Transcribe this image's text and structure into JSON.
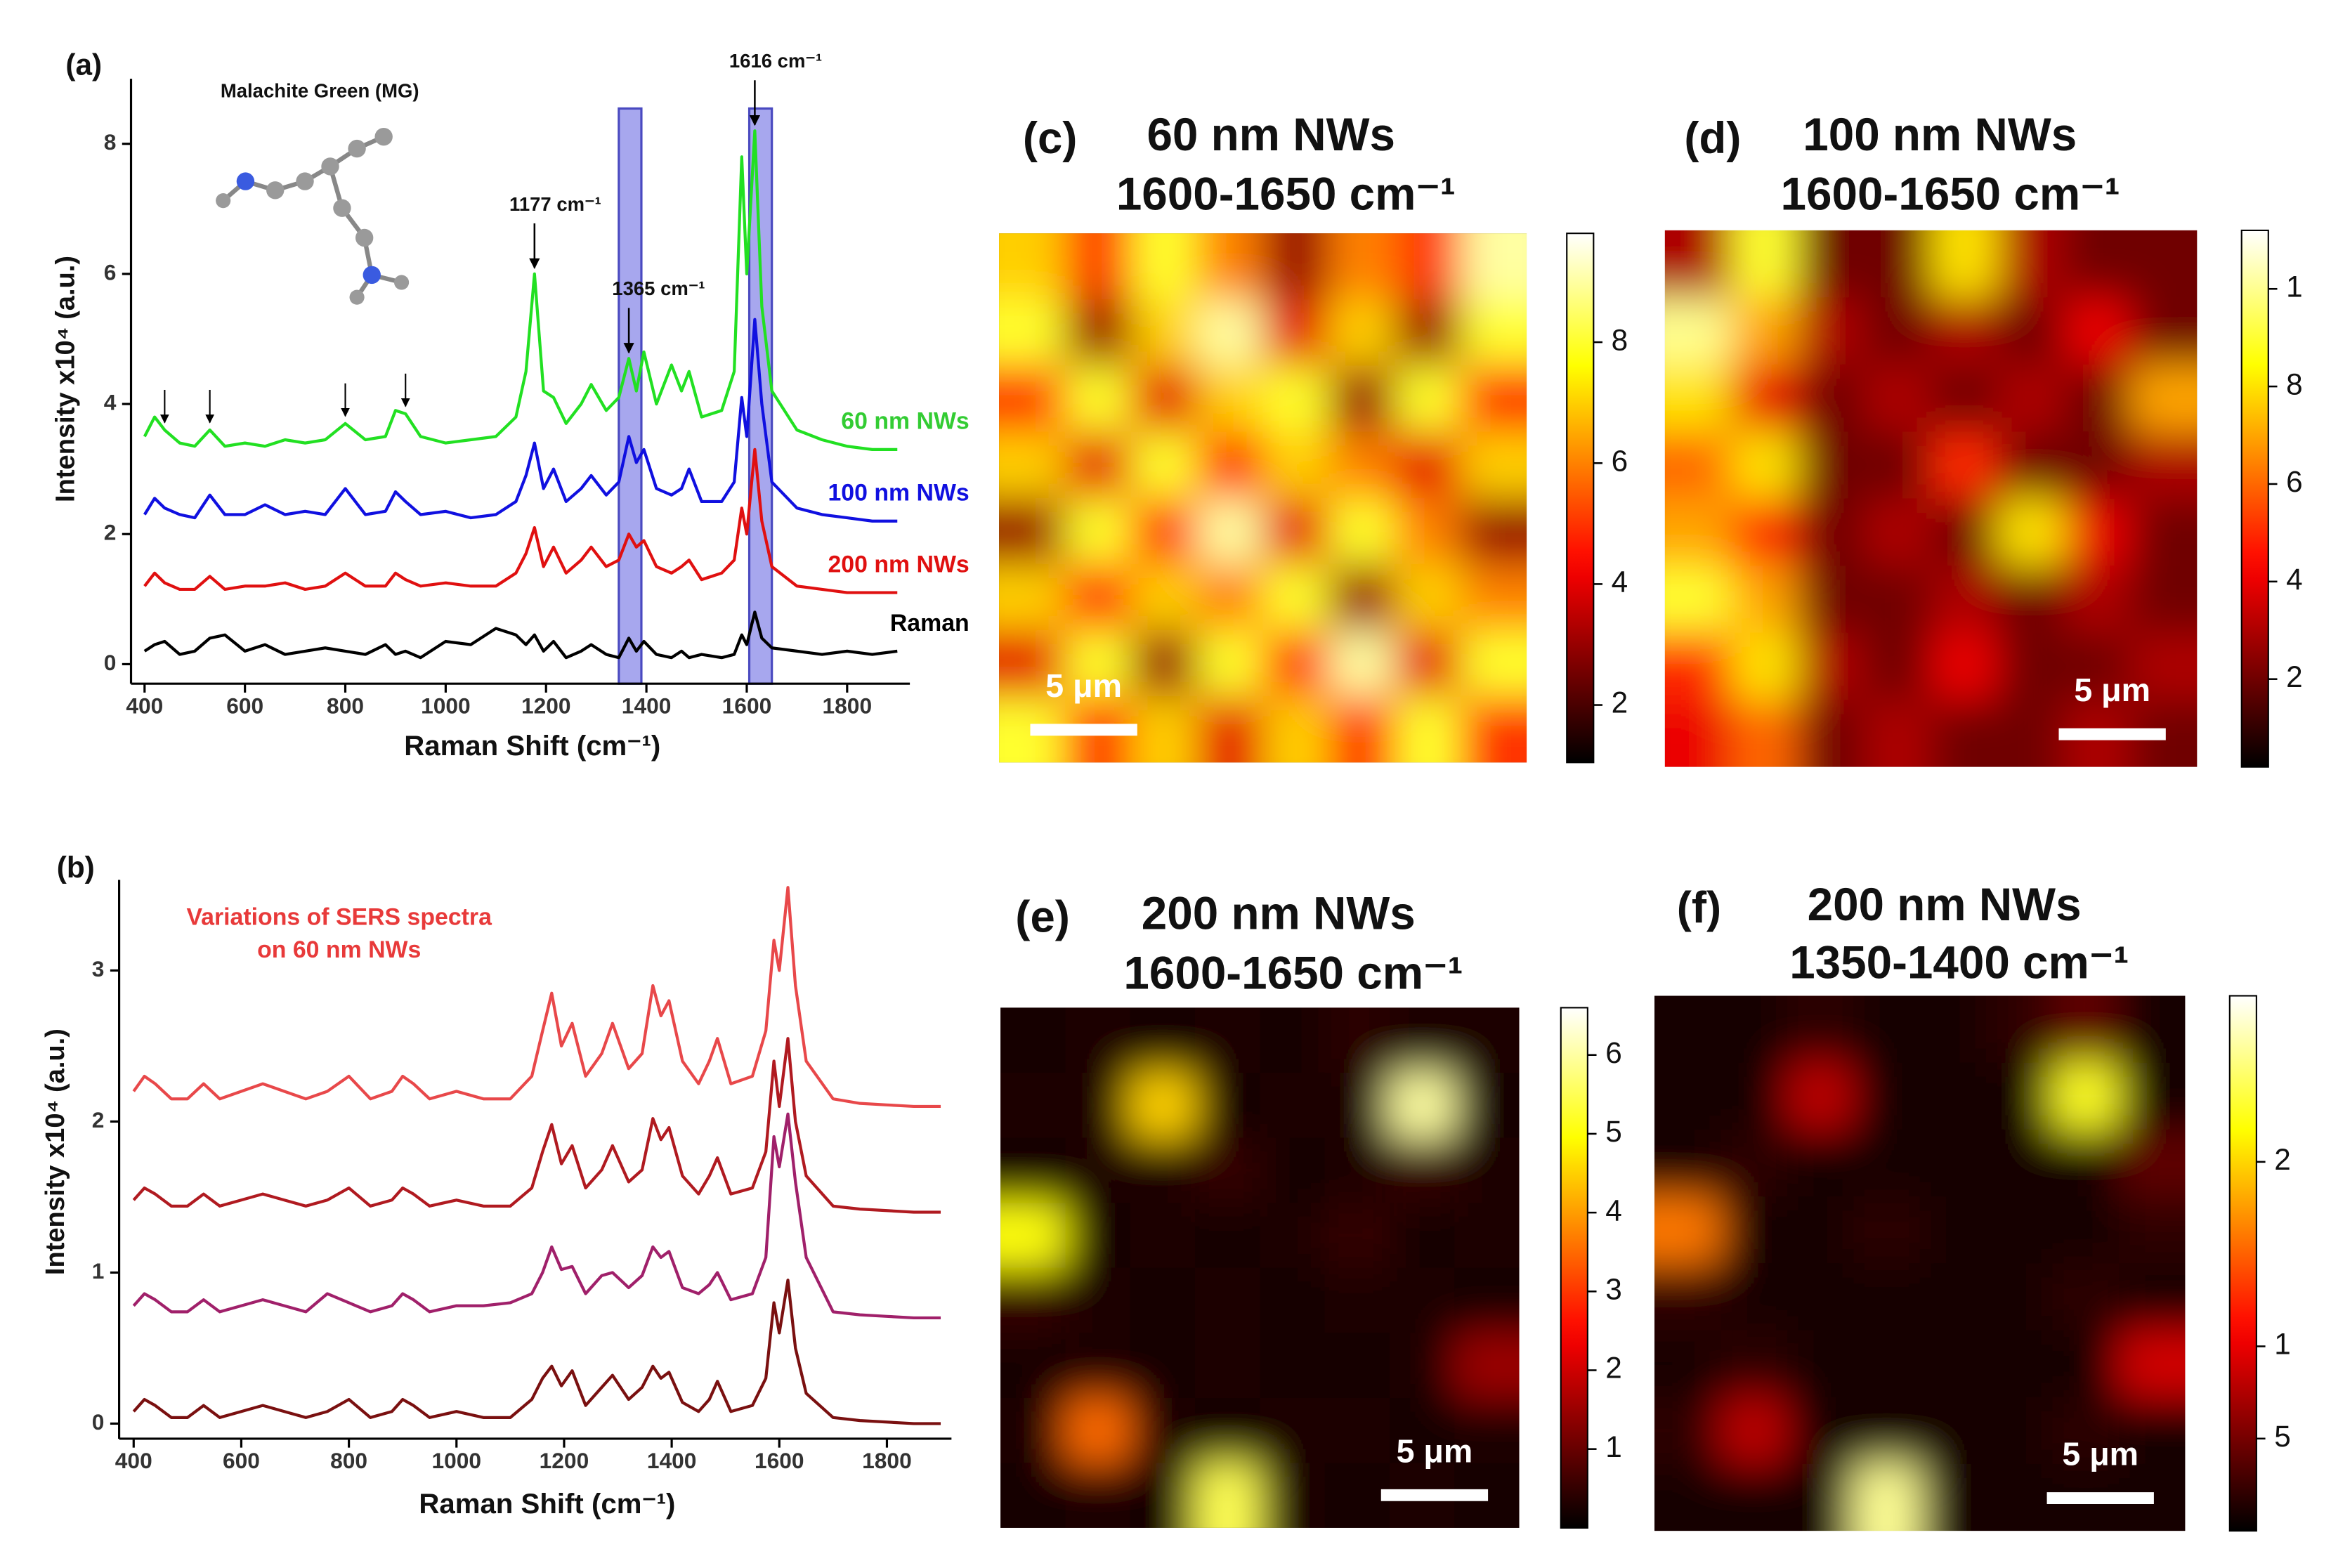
{
  "chart_data": [
    {
      "type": "line",
      "panel": "(a)",
      "inset_title": "Malachite Green (MG)",
      "x_label": "Raman Shift (cm⁻¹)",
      "y_label": "Intensity x10⁴ (a.u.)",
      "x": [
        400,
        420,
        440,
        470,
        500,
        530,
        560,
        600,
        640,
        680,
        720,
        760,
        800,
        840,
        880,
        900,
        920,
        950,
        1000,
        1050,
        1100,
        1140,
        1160,
        1177,
        1195,
        1215,
        1240,
        1270,
        1290,
        1320,
        1345,
        1365,
        1380,
        1395,
        1420,
        1450,
        1470,
        1485,
        1510,
        1550,
        1575,
        1590,
        1600,
        1616,
        1630,
        1650,
        1700,
        1750,
        1800,
        1850,
        1900
      ],
      "series": [
        {
          "name": "60 nm NWs",
          "color": "#22e022",
          "label_color": "#33cc33",
          "values": [
            3.5,
            3.8,
            3.6,
            3.4,
            3.35,
            3.6,
            3.35,
            3.4,
            3.35,
            3.45,
            3.4,
            3.45,
            3.7,
            3.45,
            3.5,
            3.9,
            3.85,
            3.5,
            3.4,
            3.45,
            3.5,
            3.8,
            4.5,
            6.0,
            4.2,
            4.1,
            3.7,
            4.0,
            4.3,
            3.9,
            4.1,
            4.7,
            4.2,
            4.8,
            4.0,
            4.6,
            4.2,
            4.5,
            3.8,
            3.9,
            4.5,
            7.8,
            6.0,
            8.2,
            5.5,
            4.2,
            3.6,
            3.45,
            3.35,
            3.3,
            3.3
          ]
        },
        {
          "name": "100 nm NWs",
          "color": "#1010e0",
          "label_color": "#1010e0",
          "values": [
            2.3,
            2.55,
            2.4,
            2.3,
            2.25,
            2.6,
            2.3,
            2.3,
            2.45,
            2.3,
            2.35,
            2.3,
            2.7,
            2.3,
            2.35,
            2.65,
            2.5,
            2.3,
            2.35,
            2.25,
            2.3,
            2.5,
            2.9,
            3.4,
            2.7,
            3.0,
            2.5,
            2.7,
            2.9,
            2.6,
            2.8,
            3.5,
            3.1,
            3.3,
            2.7,
            2.6,
            2.7,
            3.0,
            2.5,
            2.5,
            2.8,
            4.1,
            3.5,
            5.3,
            4.0,
            2.8,
            2.4,
            2.3,
            2.25,
            2.2,
            2.2
          ]
        },
        {
          "name": "200 nm NWs",
          "color": "#e01010",
          "label_color": "#e01010",
          "values": [
            1.2,
            1.4,
            1.25,
            1.15,
            1.15,
            1.35,
            1.15,
            1.2,
            1.2,
            1.25,
            1.15,
            1.2,
            1.4,
            1.2,
            1.2,
            1.4,
            1.3,
            1.2,
            1.25,
            1.2,
            1.2,
            1.4,
            1.7,
            2.1,
            1.5,
            1.8,
            1.4,
            1.6,
            1.8,
            1.5,
            1.6,
            2.0,
            1.8,
            1.9,
            1.5,
            1.4,
            1.5,
            1.6,
            1.3,
            1.4,
            1.6,
            2.4,
            2.0,
            3.3,
            2.2,
            1.5,
            1.2,
            1.15,
            1.1,
            1.1,
            1.1
          ]
        },
        {
          "name": "Raman",
          "color": "#000000",
          "label_color": "#000000",
          "values": [
            0.2,
            0.3,
            0.35,
            0.15,
            0.2,
            0.4,
            0.45,
            0.2,
            0.3,
            0.15,
            0.2,
            0.25,
            0.2,
            0.15,
            0.3,
            0.15,
            0.2,
            0.1,
            0.35,
            0.3,
            0.55,
            0.45,
            0.3,
            0.45,
            0.2,
            0.35,
            0.1,
            0.2,
            0.3,
            0.15,
            0.1,
            0.4,
            0.2,
            0.35,
            0.15,
            0.1,
            0.2,
            0.1,
            0.15,
            0.1,
            0.15,
            0.45,
            0.3,
            0.8,
            0.4,
            0.25,
            0.2,
            0.15,
            0.2,
            0.15,
            0.2
          ]
        }
      ],
      "xlim": [
        373,
        1925
      ],
      "ylim": [
        -0.3,
        9
      ],
      "xticks": [
        400,
        600,
        800,
        1000,
        1200,
        1400,
        1600,
        1800
      ],
      "yticks": [
        0,
        2,
        4,
        6,
        8
      ],
      "highlight_ranges": [
        [
          1345,
          1390
        ],
        [
          1605,
          1650
        ]
      ],
      "highlight_color": "#8a8ae8",
      "annotations": [
        {
          "text": "1177 cm⁻¹",
          "x": 1177
        },
        {
          "text": "1365 cm⁻¹",
          "x": 1365
        },
        {
          "text": "1616 cm⁻¹",
          "x": 1616
        }
      ],
      "marked_peaks": [
        440,
        530,
        800,
        920
      ]
    },
    {
      "type": "line",
      "panel": "(b)",
      "annotation_lines": [
        "Variations of SERS spectra",
        "on 60 nm NWs"
      ],
      "annotation_color": "#e83a3a",
      "x_label": "Raman Shift (cm⁻¹)",
      "y_label": "Intensity x10⁴ (a.u.)",
      "x": [
        400,
        420,
        440,
        470,
        500,
        530,
        560,
        600,
        640,
        680,
        720,
        760,
        800,
        840,
        880,
        900,
        920,
        950,
        1000,
        1050,
        1100,
        1140,
        1160,
        1177,
        1195,
        1215,
        1240,
        1270,
        1290,
        1320,
        1345,
        1365,
        1380,
        1395,
        1420,
        1450,
        1470,
        1485,
        1510,
        1550,
        1575,
        1590,
        1600,
        1616,
        1630,
        1650,
        1700,
        1750,
        1800,
        1850,
        1900
      ],
      "series": [
        {
          "color": "#e8484a",
          "values": [
            2.2,
            2.3,
            2.25,
            2.15,
            2.15,
            2.25,
            2.15,
            2.2,
            2.25,
            2.2,
            2.15,
            2.2,
            2.3,
            2.15,
            2.2,
            2.3,
            2.25,
            2.15,
            2.2,
            2.15,
            2.15,
            2.3,
            2.6,
            2.85,
            2.5,
            2.65,
            2.3,
            2.45,
            2.65,
            2.35,
            2.45,
            2.9,
            2.7,
            2.8,
            2.4,
            2.25,
            2.4,
            2.55,
            2.25,
            2.3,
            2.6,
            3.2,
            3.0,
            3.55,
            2.9,
            2.4,
            2.15,
            2.12,
            2.11,
            2.1,
            2.1
          ]
        },
        {
          "color": "#b01a20",
          "values": [
            1.48,
            1.56,
            1.52,
            1.44,
            1.44,
            1.52,
            1.44,
            1.48,
            1.52,
            1.48,
            1.44,
            1.48,
            1.56,
            1.44,
            1.48,
            1.56,
            1.52,
            1.44,
            1.48,
            1.44,
            1.44,
            1.56,
            1.8,
            1.98,
            1.72,
            1.84,
            1.56,
            1.68,
            1.84,
            1.6,
            1.68,
            2.02,
            1.88,
            1.96,
            1.64,
            1.52,
            1.64,
            1.76,
            1.52,
            1.56,
            1.8,
            2.4,
            2.1,
            2.55,
            2.0,
            1.64,
            1.44,
            1.42,
            1.41,
            1.4,
            1.4
          ]
        },
        {
          "color": "#a0206a",
          "values": [
            0.78,
            0.86,
            0.82,
            0.74,
            0.74,
            0.82,
            0.74,
            0.78,
            0.82,
            0.78,
            0.74,
            0.86,
            0.8,
            0.74,
            0.78,
            0.86,
            0.82,
            0.74,
            0.78,
            0.78,
            0.8,
            0.86,
            1.0,
            1.17,
            1.02,
            1.04,
            0.86,
            0.98,
            1.0,
            0.9,
            0.98,
            1.17,
            1.1,
            1.14,
            0.9,
            0.86,
            0.92,
            1.0,
            0.82,
            0.86,
            1.1,
            1.9,
            1.7,
            2.05,
            1.6,
            1.1,
            0.74,
            0.72,
            0.71,
            0.7,
            0.7
          ]
        },
        {
          "color": "#7a1010",
          "values": [
            0.08,
            0.16,
            0.12,
            0.04,
            0.04,
            0.12,
            0.04,
            0.08,
            0.12,
            0.08,
            0.04,
            0.08,
            0.16,
            0.04,
            0.08,
            0.16,
            0.12,
            0.04,
            0.08,
            0.04,
            0.04,
            0.16,
            0.3,
            0.38,
            0.25,
            0.35,
            0.12,
            0.24,
            0.32,
            0.16,
            0.24,
            0.38,
            0.3,
            0.34,
            0.14,
            0.08,
            0.16,
            0.28,
            0.08,
            0.12,
            0.3,
            0.8,
            0.6,
            0.95,
            0.5,
            0.2,
            0.04,
            0.02,
            0.01,
            0,
            0
          ]
        }
      ],
      "xlim": [
        373,
        1920
      ],
      "ylim": [
        -0.1,
        3.6
      ],
      "xticks": [
        400,
        600,
        800,
        1000,
        1200,
        1400,
        1600,
        1800
      ],
      "yticks": [
        0,
        1,
        2,
        3
      ]
    },
    {
      "type": "heatmap",
      "panel": "(c)",
      "title_lines": [
        "60 nm NWs",
        "1600-1650 cm⁻¹"
      ],
      "colormap": "hot",
      "scale_bar_label": "5 μm",
      "scale_bar_corner": "bottom left",
      "z": [
        [
          7,
          5,
          8,
          6,
          3,
          6,
          5,
          9
        ],
        [
          8,
          3,
          7,
          9,
          4,
          7,
          3,
          8
        ],
        [
          5,
          8,
          4,
          7,
          8,
          3,
          8,
          5
        ],
        [
          7,
          4,
          8,
          5,
          7,
          6,
          4,
          7
        ],
        [
          3,
          8,
          5,
          9,
          4,
          8,
          6,
          3
        ],
        [
          7,
          5,
          7,
          6,
          8,
          3,
          7,
          6
        ],
        [
          4,
          8,
          3,
          8,
          5,
          9,
          4,
          8
        ],
        [
          8,
          5,
          7,
          4,
          7,
          5,
          8,
          5
        ]
      ],
      "zlim": [
        1.05,
        9.8
      ],
      "zticks": [
        2,
        4,
        6,
        8
      ]
    },
    {
      "type": "heatmap",
      "panel": "(d)",
      "title_lines": [
        "100 nm NWs",
        "1600-1650 cm⁻¹"
      ],
      "colormap": "hot",
      "scale_bar_label": "5 μm",
      "scale_bar_corner": "bottom right",
      "z": [
        [
          3,
          9,
          2,
          2,
          8,
          3,
          2,
          2
        ],
        [
          10,
          7,
          3,
          2,
          3,
          2,
          4,
          2
        ],
        [
          8,
          4,
          2,
          3,
          2,
          3,
          2,
          7
        ],
        [
          6,
          8,
          2,
          2,
          5,
          2,
          2,
          3
        ],
        [
          7,
          5,
          2,
          3,
          2,
          8,
          4,
          2
        ],
        [
          9,
          7,
          2,
          2,
          3,
          2,
          3,
          2
        ],
        [
          5,
          8,
          3,
          2,
          4,
          2,
          2,
          3
        ],
        [
          4,
          6,
          2,
          3,
          2,
          2,
          3,
          2
        ]
      ],
      "zlim": [
        0.2,
        11.2
      ],
      "zticks": [
        {
          "value": 10,
          "label": "1"
        },
        8,
        6,
        4,
        2
      ]
    },
    {
      "type": "heatmap",
      "panel": "(e)",
      "title_lines": [
        "200 nm NWs",
        "1600-1650 cm⁻¹"
      ],
      "colormap": "hot",
      "scale_bar_label": "5 μm",
      "scale_bar_corner": "bottom right",
      "z": [
        [
          0.2,
          0.3,
          0.2,
          0.3,
          0.2,
          0.4,
          0.3,
          0.3
        ],
        [
          0.3,
          0.3,
          4.5,
          0.2,
          0.3,
          0.3,
          6.0,
          0.2
        ],
        [
          0.2,
          0.3,
          0.3,
          0.5,
          0.2,
          0.3,
          0.5,
          0.3
        ],
        [
          5.0,
          0.2,
          0.3,
          0.2,
          0.3,
          0.5,
          0.2,
          0.3
        ],
        [
          0.5,
          0.3,
          0.2,
          0.3,
          0.2,
          0.3,
          0.3,
          0.2
        ],
        [
          0.2,
          0.3,
          0.2,
          0.3,
          0.2,
          0.2,
          0.3,
          1.5
        ],
        [
          0.3,
          3.5,
          0.3,
          0.2,
          0.3,
          0.3,
          0.2,
          0.3
        ],
        [
          0.2,
          0.3,
          0.2,
          5.5,
          0.3,
          0.2,
          0.3,
          0.2
        ]
      ],
      "zlim": [
        0,
        6.6
      ],
      "zticks": [
        1,
        2,
        3,
        4,
        5,
        6
      ]
    },
    {
      "type": "heatmap",
      "panel": "(f)",
      "title_lines": [
        "200 nm NWs",
        "1350-1400 cm⁻¹"
      ],
      "colormap": "hot",
      "scale_bar_label": "5 μm",
      "scale_bar_corner": "bottom right",
      "z": [
        [
          0.1,
          0.1,
          0.2,
          0.1,
          0.1,
          0.2,
          0.4,
          0.1
        ],
        [
          0.1,
          0.1,
          0.8,
          0.1,
          0.1,
          0.1,
          2.3,
          0.1
        ],
        [
          0.1,
          0.2,
          0.1,
          0.1,
          0.1,
          0.1,
          0.1,
          0.4
        ],
        [
          1.6,
          0.1,
          0.1,
          0.2,
          0.1,
          0.1,
          0.1,
          0.2
        ],
        [
          0.2,
          0.1,
          0.1,
          0.1,
          0.1,
          0.1,
          0.2,
          0.1
        ],
        [
          0.1,
          0.2,
          0.1,
          0.1,
          0.1,
          0.1,
          0.1,
          0.9
        ],
        [
          0.2,
          0.8,
          0.1,
          0.1,
          0.1,
          0.1,
          0.2,
          0.1
        ],
        [
          0.1,
          0.1,
          0.1,
          2.6,
          0.1,
          0.1,
          0.1,
          0.1
        ]
      ],
      "zlim": [
        0,
        2.9
      ],
      "zticks": [
        2,
        1,
        {
          "value": 0.5,
          "label": "5"
        }
      ]
    }
  ]
}
